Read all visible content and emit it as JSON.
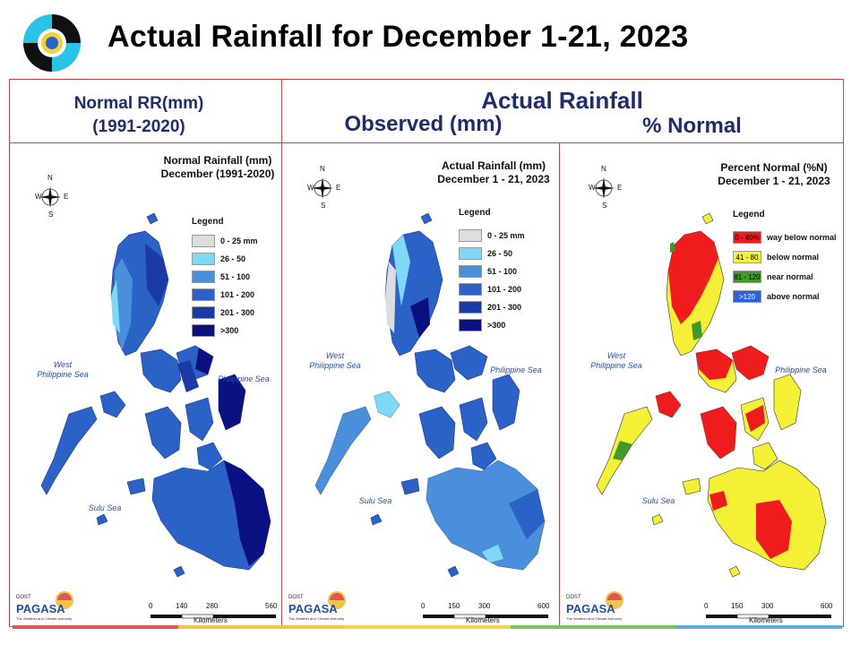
{
  "slide": {
    "title": "Actual Rainfall for December 1-21, 2023"
  },
  "headers": {
    "normal_line1": "Normal RR(mm)",
    "normal_line2": "(1991-2020)",
    "actual": "Actual Rainfall",
    "observed": "Observed (mm)",
    "percent": "% Normal"
  },
  "maps": [
    {
      "title_line1": "Normal Rainfall (mm)",
      "title_line2": "December (1991-2020)",
      "legend_title": "Legend",
      "legend": [
        {
          "label": "0 - 25 mm",
          "color": "#dddddd"
        },
        {
          "label": "26 - 50",
          "color": "#7fd8f5"
        },
        {
          "label": "51 - 100",
          "color": "#4a8fdc"
        },
        {
          "label": "101 - 200",
          "color": "#2a62c8"
        },
        {
          "label": "201 - 300",
          "color": "#1a3aa8"
        },
        {
          "label": ">300",
          "color": "#0a1080"
        }
      ],
      "scale": [
        "0",
        "140",
        "280",
        "560"
      ],
      "scale_unit": "Kilometers",
      "seas": {
        "west_line1": "West",
        "west_line2": "Philippine Sea",
        "east": "Philippine Sea",
        "south": "Sulu Sea"
      }
    },
    {
      "title_line1": "Actual Rainfall (mm)",
      "title_line2": "December 1 - 21, 2023",
      "legend_title": "Legend",
      "legend": [
        {
          "label": "0 - 25 mm",
          "color": "#dddddd"
        },
        {
          "label": "26 - 50",
          "color": "#7fd8f5"
        },
        {
          "label": "51 - 100",
          "color": "#4a8fdc"
        },
        {
          "label": "101 - 200",
          "color": "#2a62c8"
        },
        {
          "label": "201 - 300",
          "color": "#1a3aa8"
        },
        {
          "label": ">300",
          "color": "#0a1080"
        }
      ],
      "scale": [
        "0",
        "150",
        "300",
        "600"
      ],
      "scale_unit": "Kilometers",
      "seas": {
        "west_line1": "West",
        "west_line2": "Philippine Sea",
        "east": "Philippine Sea",
        "south": "Sulu Sea"
      }
    },
    {
      "title_line1": "Percent Normal (%N)",
      "title_line2": "December 1 - 21, 2023",
      "legend_title": "Legend",
      "legend": [
        {
          "swatch": "0 - 40%",
          "label": "way below normal",
          "color": "#ee1c1c"
        },
        {
          "swatch": "41 - 80",
          "label": "below normal",
          "color": "#f3f035"
        },
        {
          "swatch": "81 - 120",
          "label": "near normal",
          "color": "#3f9a2a"
        },
        {
          "swatch": ">120",
          "label": "above normal",
          "color": "#2a62d8"
        }
      ],
      "scale": [
        "0",
        "150",
        "300",
        "600"
      ],
      "scale_unit": "Kilometers",
      "seas": {
        "west_line1": "West",
        "west_line2": "Philippine Sea",
        "east": "Philippine Sea",
        "south": "Sulu Sea"
      }
    }
  ],
  "compass": {
    "n": "N",
    "s": "S",
    "e": "E",
    "w": "W"
  },
  "pagasa": {
    "small": "DOST",
    "name": "PAGASA",
    "tagline": "The Weather and Climate Authority"
  },
  "colors": {
    "frame": "#d04040",
    "header_text": "#1f2d6b",
    "strip": [
      "#e05555",
      "#f2c24a",
      "#f2d54a",
      "#7cc35a",
      "#5aaee0"
    ]
  }
}
